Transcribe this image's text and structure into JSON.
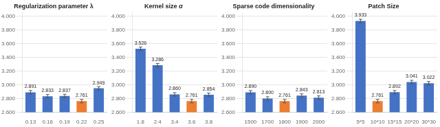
{
  "chart_data": [
    {
      "type": "bar",
      "title": "Regularization parameter λ",
      "categories": [
        "0.13",
        "0.16",
        "0.19",
        "0.22",
        "0.25"
      ],
      "values": [
        2.891,
        2.833,
        2.837,
        2.761,
        2.949
      ],
      "value_labels": [
        "2.891",
        "2.833",
        "2.837",
        "2.761",
        "2.949"
      ],
      "errors": [
        0.025,
        0.025,
        0.025,
        0.025,
        0.025
      ],
      "colors": [
        "#4472C4",
        "#4472C4",
        "#4472C4",
        "#ED7D31",
        "#4472C4"
      ],
      "ylim": [
        2.6,
        4.05
      ],
      "yticks": [
        {
          "value": 2.6,
          "label": "2.600"
        },
        {
          "value": 2.8,
          "label": "2.800"
        },
        {
          "value": 3.0,
          "label": "3.000"
        },
        {
          "value": 3.2,
          "label": "3.200"
        },
        {
          "value": 3.4,
          "label": "3.400"
        },
        {
          "value": 3.6,
          "label": "3.600"
        },
        {
          "value": 3.8,
          "label": "3.800"
        },
        {
          "value": 4.0,
          "label": "4.000"
        }
      ],
      "grid": true,
      "data_labels": true
    },
    {
      "type": "bar",
      "title": "Kernel size σ",
      "categories": [
        "1.8",
        "2.4",
        "3.4",
        "3.6",
        "3.8"
      ],
      "values": [
        3.526,
        3.286,
        2.86,
        2.761,
        2.854
      ],
      "value_labels": [
        "3.526",
        "3.286",
        "2.860",
        "2.761",
        "2.854"
      ],
      "errors": [
        0.025,
        0.025,
        0.025,
        0.025,
        0.025
      ],
      "colors": [
        "#4472C4",
        "#4472C4",
        "#4472C4",
        "#ED7D31",
        "#4472C4"
      ],
      "ylim": [
        2.6,
        4.05
      ],
      "yticks": [
        {
          "value": 2.6,
          "label": "2.600"
        },
        {
          "value": 2.8,
          "label": "2.800"
        },
        {
          "value": 3.0,
          "label": "3.000"
        },
        {
          "value": 3.2,
          "label": "3.200"
        },
        {
          "value": 3.4,
          "label": "3.400"
        },
        {
          "value": 3.6,
          "label": "3.600"
        },
        {
          "value": 3.8,
          "label": "3.800"
        },
        {
          "value": 4.0,
          "label": "4.000"
        }
      ],
      "grid": true,
      "data_labels": true
    },
    {
      "type": "bar",
      "title": "Sparse code dimensionality",
      "categories": [
        "1500",
        "1700",
        "1800",
        "1900",
        "2000"
      ],
      "values": [
        2.89,
        2.8,
        2.761,
        2.843,
        2.813
      ],
      "value_labels": [
        "2.890",
        "2.800",
        "2.761",
        "2.843",
        "2.813"
      ],
      "errors": [
        0.025,
        0.025,
        0.025,
        0.025,
        0.025
      ],
      "colors": [
        "#4472C4",
        "#4472C4",
        "#ED7D31",
        "#4472C4",
        "#4472C4"
      ],
      "ylim": [
        2.6,
        4.05
      ],
      "yticks": [
        {
          "value": 2.6,
          "label": "2.600"
        },
        {
          "value": 2.8,
          "label": "2.800"
        },
        {
          "value": 3.0,
          "label": "3.000"
        },
        {
          "value": 3.2,
          "label": "3.200"
        },
        {
          "value": 3.4,
          "label": "3.400"
        },
        {
          "value": 3.6,
          "label": "3.600"
        },
        {
          "value": 3.8,
          "label": "3.800"
        },
        {
          "value": 4.0,
          "label": "4.000"
        }
      ],
      "grid": true,
      "data_labels": true
    },
    {
      "type": "bar",
      "title": "Patch Size",
      "categories": [
        "5*5",
        "10*10",
        "15*15",
        "20*20",
        "30*30"
      ],
      "values": [
        3.933,
        2.761,
        2.892,
        3.041,
        3.022
      ],
      "value_labels": [
        "3.933",
        "2.761",
        "2.892",
        "3.041",
        "3.022"
      ],
      "errors": [
        0.025,
        0.025,
        0.025,
        0.025,
        0.025
      ],
      "colors": [
        "#4472C4",
        "#ED7D31",
        "#4472C4",
        "#4472C4",
        "#4472C4"
      ],
      "ylim": [
        2.6,
        4.05
      ],
      "yticks": [
        {
          "value": 2.6,
          "label": "2.600"
        },
        {
          "value": 2.8,
          "label": "2.800"
        },
        {
          "value": 3.0,
          "label": "3.000"
        },
        {
          "value": 3.2,
          "label": "3.200"
        },
        {
          "value": 3.4,
          "label": "3.400"
        },
        {
          "value": 3.6,
          "label": "3.600"
        },
        {
          "value": 3.8,
          "label": "3.800"
        },
        {
          "value": 4.0,
          "label": "4.000"
        }
      ],
      "grid": true,
      "data_labels": true
    }
  ]
}
